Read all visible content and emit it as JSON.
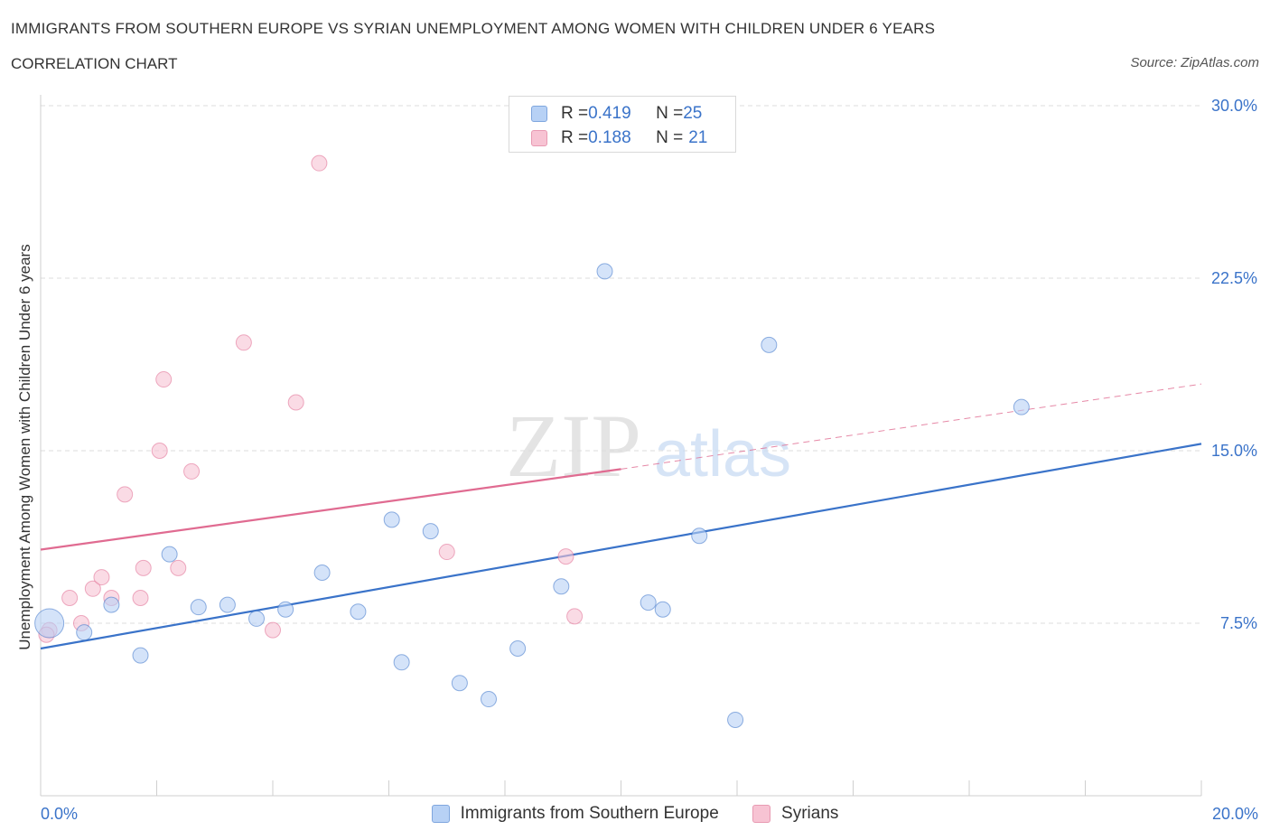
{
  "header": {
    "title": "IMMIGRANTS FROM SOUTHERN EUROPE VS SYRIAN UNEMPLOYMENT AMONG WOMEN WITH CHILDREN UNDER 6 YEARS",
    "subtitle": "CORRELATION CHART",
    "source": "Source: ZipAtlas.com"
  },
  "watermark": {
    "zip": "ZIP",
    "atlas": "atlas"
  },
  "stats": [
    {
      "r_label": "R = ",
      "r": "0.419",
      "n_label": "N = ",
      "n": "25",
      "color": "#b7d1f5"
    },
    {
      "r_label": "R = ",
      "r": "0.188",
      "n_label": "N = ",
      "n": "21",
      "color": "#f7c3d3"
    }
  ],
  "chart_data": {
    "type": "scatter",
    "xlabel": "",
    "ylabel": "Unemployment Among Women with Children Under 6 years",
    "xlim": [
      0,
      20
    ],
    "ylim": [
      0,
      30
    ],
    "x_tick_labels": [
      "0.0%",
      "20.0%"
    ],
    "y_ticks": [
      7.5,
      15,
      22.5,
      30
    ],
    "y_tick_labels": [
      "7.5%",
      "15.0%",
      "22.5%",
      "30.0%"
    ],
    "grid": "horizontal dashed",
    "legend": "bottom-center",
    "series": [
      {
        "name": "Immigrants from Southern Europe",
        "color": "#3a73c9",
        "fill": "#b7d1f5",
        "points": [
          [
            0.15,
            7.5
          ],
          [
            0.75,
            7.1
          ],
          [
            1.22,
            8.3
          ],
          [
            1.72,
            6.1
          ],
          [
            2.22,
            10.5
          ],
          [
            2.72,
            8.2
          ],
          [
            3.22,
            8.3
          ],
          [
            3.72,
            7.7
          ],
          [
            4.22,
            8.1
          ],
          [
            4.85,
            9.7
          ],
          [
            5.47,
            8.0
          ],
          [
            6.05,
            12.0
          ],
          [
            6.22,
            5.8
          ],
          [
            6.72,
            11.5
          ],
          [
            7.22,
            4.9
          ],
          [
            7.72,
            4.2
          ],
          [
            8.22,
            6.4
          ],
          [
            8.97,
            9.1
          ],
          [
            9.72,
            22.8
          ],
          [
            10.47,
            8.4
          ],
          [
            10.72,
            8.1
          ],
          [
            11.35,
            11.3
          ],
          [
            11.97,
            3.3
          ],
          [
            12.55,
            19.6
          ],
          [
            16.9,
            16.9
          ]
        ],
        "trend": [
          [
            0,
            6.4
          ],
          [
            20,
            15.3
          ]
        ]
      },
      {
        "name": "Syrians",
        "color": "#e06b91",
        "fill": "#f7c3d3",
        "points": [
          [
            0.15,
            7.2
          ],
          [
            0.5,
            8.6
          ],
          [
            0.7,
            7.5
          ],
          [
            0.9,
            9.0
          ],
          [
            1.05,
            9.5
          ],
          [
            1.22,
            8.6
          ],
          [
            1.45,
            13.1
          ],
          [
            1.72,
            8.6
          ],
          [
            1.77,
            9.9
          ],
          [
            2.05,
            15.0
          ],
          [
            2.12,
            18.1
          ],
          [
            2.37,
            9.9
          ],
          [
            2.6,
            14.1
          ],
          [
            3.5,
            19.7
          ],
          [
            4.0,
            7.2
          ],
          [
            4.4,
            17.1
          ],
          [
            4.8,
            27.5
          ],
          [
            7.0,
            10.6
          ],
          [
            9.05,
            10.4
          ],
          [
            9.2,
            7.8
          ],
          [
            0.1,
            7.0
          ]
        ],
        "trend": [
          [
            0,
            10.7
          ],
          [
            10,
            14.2
          ]
        ],
        "trend_extension": [
          [
            10,
            14.2
          ],
          [
            20,
            17.9
          ]
        ]
      }
    ]
  }
}
